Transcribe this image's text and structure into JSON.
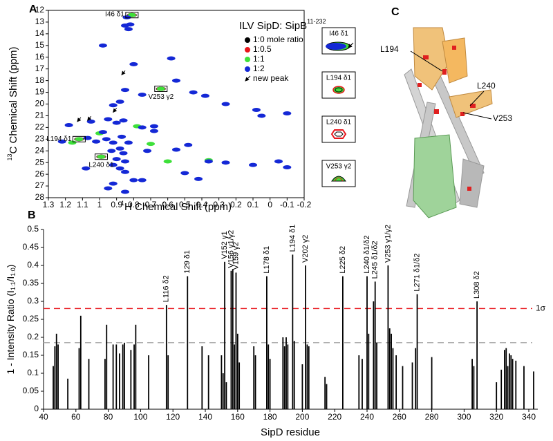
{
  "panels": {
    "a": "A",
    "b": "B",
    "c": "C"
  },
  "insets": [
    "I46 δ1",
    "L194 δ1",
    "L240 δ1",
    "V253 γ2"
  ],
  "structure_labels": [
    "L194",
    "L240",
    "V253"
  ],
  "chart_data": [
    {
      "type": "scatter",
      "title": "ILV SipD: SipB",
      "title_sup": "11-232",
      "xlabel_sup": "1",
      "xlabel": "H Chemical Shift (ppm)",
      "ylabel_sup": "13",
      "ylabel": "C Chemical Shift (ppm)",
      "xlim": [
        1.3,
        -0.2
      ],
      "xticks": [
        1.3,
        1.2,
        1.1,
        1,
        0.9,
        0.8,
        0.7,
        0.6,
        0.5,
        0.4,
        0.3,
        0.2,
        0.1,
        0,
        -0.1,
        -0.2
      ],
      "ylim": [
        12,
        28
      ],
      "yticks": [
        12,
        13,
        14,
        15,
        16,
        17,
        18,
        19,
        20,
        21,
        22,
        23,
        24,
        25,
        26,
        27,
        28
      ],
      "yinvert": true,
      "series": [
        {
          "name": "1:0 mole ratio",
          "color": "#000000",
          "values": [
            [
              0.81,
              12.4
            ],
            [
              0.64,
              18.7
            ],
            [
              1.12,
              23.0
            ],
            [
              0.99,
              24.5
            ]
          ]
        },
        {
          "name": "1:0.5",
          "color": "#e8151b",
          "values": [
            [
              0.81,
              12.4
            ],
            [
              0.64,
              18.7
            ],
            [
              1.12,
              23.0
            ],
            [
              0.99,
              24.5
            ]
          ]
        },
        {
          "name": "1:1",
          "color": "#3ee03a",
          "values": [
            [
              0.81,
              12.4
            ],
            [
              0.64,
              18.7
            ],
            [
              1.12,
              23.0
            ],
            [
              0.99,
              24.5
            ],
            [
              0.7,
              23.4
            ],
            [
              0.6,
              24.9
            ],
            [
              0.36,
              24.8
            ],
            [
              1.0,
              22.5
            ],
            [
              0.78,
              21.9
            ],
            [
              1.16,
              23.3
            ]
          ]
        },
        {
          "name": "1:2",
          "color": "#1428d6",
          "values": [
            [
              0.84,
              12.6
            ],
            [
              0.82,
              13.2
            ],
            [
              0.85,
              13.3
            ],
            [
              0.83,
              13.6
            ],
            [
              0.98,
              15.0
            ],
            [
              0.58,
              16.1
            ],
            [
              0.8,
              16.6
            ],
            [
              0.55,
              18.0
            ],
            [
              0.85,
              18.8
            ],
            [
              0.45,
              19.0
            ],
            [
              0.38,
              19.3
            ],
            [
              0.75,
              19.2
            ],
            [
              0.88,
              19.8
            ],
            [
              0.92,
              20.1
            ],
            [
              0.26,
              20.0
            ],
            [
              0.08,
              20.5
            ],
            [
              0.05,
              21.0
            ],
            [
              -0.1,
              20.8
            ],
            [
              1.18,
              21.8
            ],
            [
              1.05,
              21.5
            ],
            [
              0.95,
              21.3
            ],
            [
              0.9,
              21.6
            ],
            [
              0.86,
              21.4
            ],
            [
              0.75,
              22.0
            ],
            [
              0.68,
              22.3
            ],
            [
              0.98,
              22.4
            ],
            [
              1.07,
              22.9
            ],
            [
              1.02,
              23.2
            ],
            [
              0.96,
              23.0
            ],
            [
              0.92,
              23.3
            ],
            [
              0.87,
              22.8
            ],
            [
              0.83,
              23.3
            ],
            [
              0.88,
              23.8
            ],
            [
              0.93,
              24.0
            ],
            [
              0.86,
              24.2
            ],
            [
              0.9,
              24.7
            ],
            [
              0.85,
              24.9
            ],
            [
              0.92,
              25.2
            ],
            [
              0.88,
              25.5
            ],
            [
              1.08,
              25.5
            ],
            [
              0.85,
              25.8
            ],
            [
              0.8,
              26.5
            ],
            [
              0.92,
              26.8
            ],
            [
              0.95,
              27.2
            ],
            [
              0.85,
              27.5
            ],
            [
              0.55,
              23.9
            ],
            [
              0.48,
              23.5
            ],
            [
              0.36,
              24.9
            ],
            [
              0.26,
              25.0
            ],
            [
              0.1,
              25.2
            ],
            [
              -0.05,
              24.9
            ],
            [
              -0.1,
              25.4
            ],
            [
              0.42,
              26.4
            ],
            [
              0.5,
              25.9
            ],
            [
              0.75,
              26.5
            ],
            [
              1.22,
              23.2
            ],
            [
              0.72,
              24.0
            ],
            [
              0.68,
              21.9
            ]
          ]
        }
      ],
      "arrows": {
        "name": "new peak",
        "color": "#000000",
        "values": [
          [
            0.87,
            17.5
          ],
          [
            0.92,
            20.7
          ],
          [
            1.07,
            21.4
          ],
          [
            1.13,
            21.5
          ]
        ]
      },
      "boxes": [
        {
          "text": "I46 δ1",
          "x": 0.81,
          "y": 12.4,
          "label_side": "left"
        },
        {
          "text": "V253 γ2",
          "x": 0.64,
          "y": 18.7,
          "label_side": "below"
        },
        {
          "text": "L194 δ1",
          "x": 1.12,
          "y": 23.0,
          "label_side": "left"
        },
        {
          "text": "L240 δ1",
          "x": 0.99,
          "y": 24.5,
          "label_side": "below"
        }
      ]
    },
    {
      "type": "bar",
      "xlabel": "SipD residue",
      "ylabel_parts": [
        "1 - Intensity Ratio (I",
        "1:1",
        "/I",
        "1:0",
        ")"
      ],
      "color": "#000000",
      "xlim": [
        40,
        345
      ],
      "xticks": [
        40,
        60,
        80,
        100,
        120,
        140,
        160,
        180,
        200,
        220,
        240,
        260,
        280,
        300,
        320,
        340
      ],
      "ylim": [
        0,
        0.5
      ],
      "yticks": [
        0,
        0.05,
        0.1,
        0.15,
        0.2,
        0.25,
        0.3,
        0.35,
        0.4,
        0.45,
        0.5
      ],
      "x": [
        46,
        47,
        48,
        49,
        55,
        62,
        63,
        68,
        78,
        79,
        83,
        85,
        87,
        89,
        90,
        94,
        96,
        97,
        105,
        116,
        117,
        129,
        138,
        142,
        150,
        151,
        152,
        153,
        156,
        157,
        158,
        159,
        160,
        161,
        170,
        171,
        178,
        179,
        180,
        188,
        189,
        190,
        191,
        194,
        195,
        200,
        202,
        203,
        204,
        214,
        215,
        225,
        235,
        237,
        240,
        241,
        244,
        245,
        246,
        253,
        254,
        255,
        256,
        258,
        262,
        268,
        270,
        271,
        280,
        305,
        306,
        308,
        320,
        323,
        325,
        326,
        327,
        328,
        329,
        330,
        332,
        337,
        343
      ],
      "values": [
        0.12,
        0.175,
        0.21,
        0.18,
        0.085,
        0.17,
        0.26,
        0.14,
        0.14,
        0.235,
        0.18,
        0.18,
        0.155,
        0.18,
        0.185,
        0.165,
        0.18,
        0.235,
        0.15,
        0.29,
        0.15,
        0.37,
        0.175,
        0.15,
        0.15,
        0.1,
        0.41,
        0.075,
        0.385,
        0.39,
        0.18,
        0.38,
        0.21,
        0.13,
        0.175,
        0.15,
        0.37,
        0.18,
        0.14,
        0.2,
        0.175,
        0.2,
        0.18,
        0.43,
        0.19,
        0.125,
        0.4,
        0.18,
        0.175,
        0.09,
        0.07,
        0.37,
        0.15,
        0.14,
        0.37,
        0.21,
        0.3,
        0.355,
        0.185,
        0.4,
        0.225,
        0.21,
        0.17,
        0.15,
        0.12,
        0.13,
        0.17,
        0.32,
        0.145,
        0.14,
        0.12,
        0.3,
        0.075,
        0.11,
        0.165,
        0.17,
        0.12,
        0.155,
        0.15,
        0.14,
        0.135,
        0.12,
        0.105
      ],
      "annotations": [
        {
          "text": "L116 δ2",
          "x": 116
        },
        {
          "text": "129 δ1",
          "x": 129
        },
        {
          "text": "V152 γ1",
          "x": 152
        },
        {
          "text": "V156 γ1/γ2",
          "x": 156
        },
        {
          "text": "V159 γ2",
          "x": 159
        },
        {
          "text": "L178 δ1",
          "x": 178
        },
        {
          "text": "L194 δ1",
          "x": 194
        },
        {
          "text": "V202 γ2",
          "x": 202
        },
        {
          "text": "L225 δ2",
          "x": 225
        },
        {
          "text": "L240 δ1/δ2",
          "x": 240
        },
        {
          "text": "L245 δ1/δ2",
          "x": 245
        },
        {
          "text": "V253 γ1/γ2",
          "x": 253
        },
        {
          "text": "L271 δ1/δ2",
          "x": 271
        },
        {
          "text": "L308 δ2",
          "x": 308
        }
      ],
      "thresholds": [
        {
          "value": 0.28,
          "color": "#e8151b",
          "label": "1σ"
        },
        {
          "value": 0.185,
          "color": "#b0b0b0"
        }
      ]
    }
  ]
}
